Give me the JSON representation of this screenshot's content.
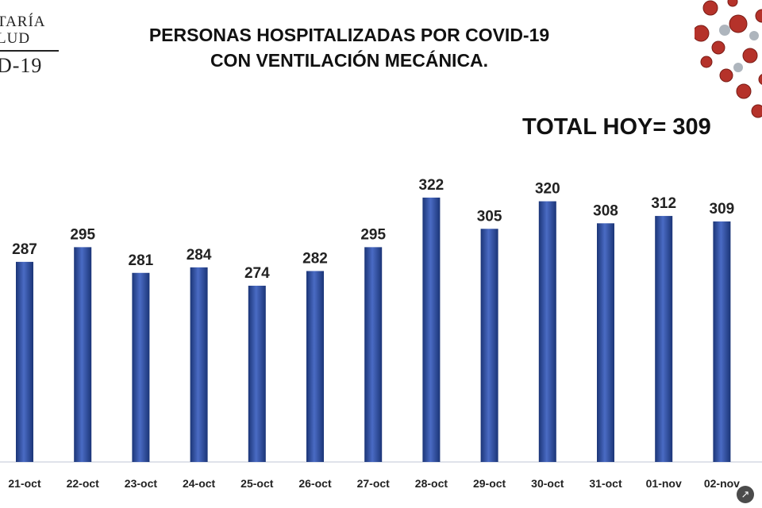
{
  "logo": {
    "line1": "TARÍA",
    "line2": "LUD",
    "line3": "D-19"
  },
  "total_label": "TOTAL HOY= 309",
  "icons": {
    "virus": "coronavirus-icon",
    "corner": "collapse-icon"
  },
  "colors": {
    "bar": "#213f8a",
    "bar_highlight": "#4a6bc4",
    "text": "#111111"
  },
  "chart_data": {
    "type": "bar",
    "title": "PERSONAS HOSPITALIZADAS POR COVID-19 CON VENTILACIÓN MECÁNICA.",
    "title_lines": [
      "PERSONAS HOSPITALIZADAS POR COVID-19",
      "CON VENTILACIÓN MECÁNICA."
    ],
    "xlabel": "",
    "ylabel": "",
    "categories": [
      "21-oct",
      "22-oct",
      "23-oct",
      "24-oct",
      "25-oct",
      "26-oct",
      "27-oct",
      "28-oct",
      "29-oct",
      "30-oct",
      "31-oct",
      "01-nov",
      "02-nov"
    ],
    "values": [
      287,
      295,
      281,
      284,
      274,
      282,
      295,
      322,
      305,
      320,
      308,
      312,
      309
    ],
    "ylim": [
      178,
      325
    ],
    "grid": false,
    "legend": "none"
  }
}
